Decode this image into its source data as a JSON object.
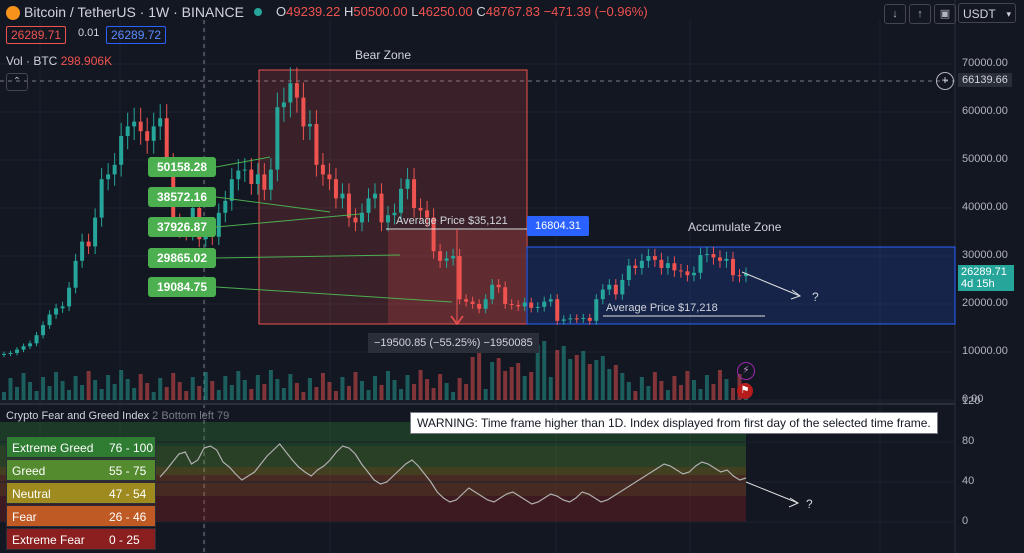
{
  "header": {
    "title": "Bitcoin / TetherUS · 1W · BINANCE",
    "ohlc": {
      "open_label": "O",
      "open": "49239.22",
      "high_label": "H",
      "high": "50500.00",
      "low_label": "L",
      "low": "46250.00",
      "close_label": "C",
      "close": "48767.83",
      "change": "−471.39 (−0.96%)"
    },
    "sell_price": "26289.71",
    "spread": "0.01",
    "buy_price": "26289.72",
    "volume_label": "Vol · BTC",
    "volume_value": "298.906K",
    "currency": "USDT",
    "toolbar_icons": [
      "arrow-down-icon",
      "arrow-up-icon",
      "camera-icon"
    ]
  },
  "colors": {
    "up": "#26a69a",
    "down": "#ef5350",
    "bg": "#131722",
    "bear_zone": "#ef5350",
    "accumulate_zone": "#2962ff",
    "label_green": "#4caf50"
  },
  "price_axis": {
    "ticks": [
      "70000.00",
      "60000.00",
      "50000.00",
      "40000.00",
      "30000.00",
      "20000.00",
      "10000.00",
      "0.00"
    ],
    "crosshair_price": "66139.66",
    "last_price": "26289.71",
    "last_time": "4d 15h"
  },
  "annotations": {
    "bear_zone": "Bear Zone",
    "accumulate_zone": "Accumulate Zone",
    "avg_price_bear": "Average Price $35,121",
    "avg_price_acc": "Average Price $17,218",
    "blue_tag": "16804.31",
    "measure": "−19500.85 (−55.25%) −1950085",
    "green_labels": [
      "50158.28",
      "38572.16",
      "37926.87",
      "29865.02",
      "19084.75"
    ],
    "question": "?"
  },
  "indicator": {
    "title": "Crypto Fear and Greed Index",
    "params": "2 Bottom left",
    "value": "79",
    "warning": "WARNING: Time frame higher than 1D. Index displayed from first day of the selected time frame.",
    "ticks": [
      "120",
      "80",
      "40",
      "0"
    ],
    "legend": [
      {
        "name": "Extreme Greed",
        "range": "76 - 100",
        "color": "#2e7d32"
      },
      {
        "name": "Greed",
        "range": "55 - 75",
        "color": "#558b2f"
      },
      {
        "name": "Neutral",
        "range": "47 - 54",
        "color": "#9e8a1f"
      },
      {
        "name": "Fear",
        "range": "26 - 46",
        "color": "#bf5a24"
      },
      {
        "name": "Extreme Fear",
        "range": "0 - 25",
        "color": "#8b1f1f"
      }
    ],
    "question": "?"
  }
}
